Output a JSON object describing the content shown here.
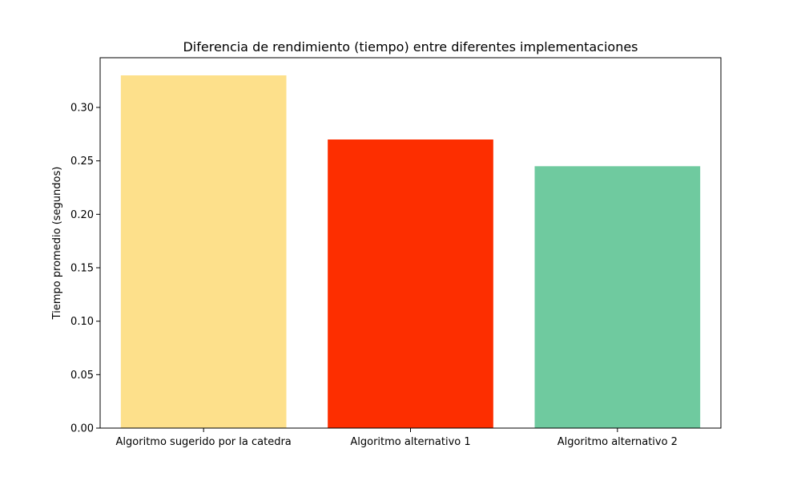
{
  "chart_data": {
    "type": "bar",
    "title": "Diferencia de rendimiento (tiempo) entre diferentes implementaciones",
    "xlabel": "",
    "ylabel": "Tiempo promedio (segundos)",
    "categories": [
      "Algoritmo sugerido por la catedra",
      "Algoritmo alternativo 1",
      "Algoritmo alternativo 2"
    ],
    "values": [
      0.33,
      0.27,
      0.245
    ],
    "colors": [
      "#fde08b",
      "#fd2e00",
      "#6fca9f"
    ],
    "ylim": [
      0,
      0.3465
    ],
    "yticks": [
      0.0,
      0.05,
      0.1,
      0.15,
      0.2,
      0.25,
      0.3
    ],
    "ytick_labels": [
      "0.00",
      "0.05",
      "0.10",
      "0.15",
      "0.20",
      "0.25",
      "0.30"
    ],
    "grid": false,
    "legend": "none"
  }
}
